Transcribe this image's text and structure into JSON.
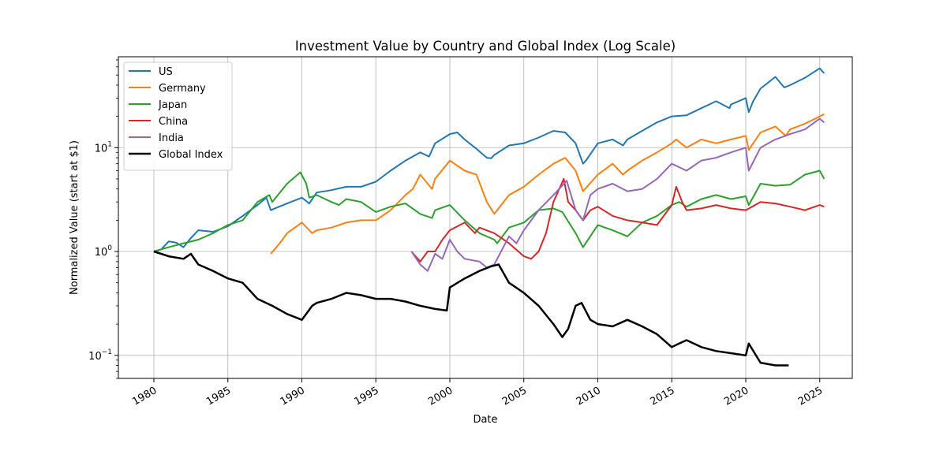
{
  "chart_data": {
    "type": "line",
    "title": "Investment Value by Country and Global Index (Log Scale)",
    "xlabel": "Date",
    "ylabel": "Normalized Value (start at $1)",
    "yscale": "log",
    "ylim": [
      0.06,
      75
    ],
    "xlim": [
      1977.6,
      2027.2
    ],
    "grid": true,
    "legend_position": "top-left",
    "x_ticks": [
      1980,
      1985,
      1990,
      1995,
      2000,
      2005,
      2010,
      2015,
      2020,
      2025
    ],
    "x_tick_labels": [
      "1980",
      "1985",
      "1990",
      "1995",
      "2000",
      "2005",
      "2010",
      "2015",
      "2020",
      "2025"
    ],
    "y_ticks": [
      {
        "value": 0.1,
        "base": "10",
        "exp": "−1"
      },
      {
        "value": 1,
        "base": "10",
        "exp": "0"
      },
      {
        "value": 10,
        "base": "10",
        "exp": "1"
      }
    ],
    "series": [
      {
        "name": "US",
        "color": "#1f77b4",
        "width": 2,
        "x": [
          1980.0,
          1980.5,
          1981.0,
          1981.5,
          1982.0,
          1982.5,
          1983.0,
          1984.0,
          1985.0,
          1986.0,
          1987.0,
          1987.6,
          1987.9,
          1989.0,
          1990.0,
          1990.5,
          1991.0,
          1992.0,
          1993.0,
          1994.0,
          1995.0,
          1996.0,
          1997.0,
          1998.0,
          1998.6,
          1999.0,
          2000.0,
          2000.5,
          2001.0,
          2001.7,
          2002.5,
          2002.8,
          2003.0,
          2004.0,
          2005.0,
          2006.0,
          2007.0,
          2007.8,
          2008.5,
          2009.0,
          2009.2,
          2010.0,
          2011.0,
          2011.7,
          2012.0,
          2013.0,
          2014.0,
          2015.0,
          2016.0,
          2017.0,
          2018.0,
          2018.9,
          2019.0,
          2020.0,
          2020.2,
          2020.5,
          2021.0,
          2022.0,
          2022.6,
          2023.0,
          2024.0,
          2025.0,
          2025.3
        ],
        "y": [
          1.0,
          1.05,
          1.25,
          1.22,
          1.1,
          1.35,
          1.6,
          1.55,
          1.75,
          2.2,
          2.8,
          3.3,
          2.5,
          2.9,
          3.3,
          2.9,
          3.7,
          3.9,
          4.2,
          4.2,
          4.7,
          6.0,
          7.5,
          9.0,
          8.2,
          11.0,
          13.5,
          14.0,
          12.0,
          10.0,
          8.0,
          7.9,
          8.5,
          10.5,
          11.0,
          12.5,
          14.5,
          14.0,
          11.0,
          7.0,
          7.5,
          11.0,
          12.0,
          10.5,
          12.0,
          14.5,
          17.5,
          20.0,
          20.5,
          24.0,
          28.0,
          24.0,
          26.0,
          30.0,
          22.0,
          28.0,
          37.0,
          48.0,
          38.0,
          40.0,
          47.0,
          58.0,
          52.0
        ]
      },
      {
        "name": "Germany",
        "color": "#ff7f0e",
        "width": 2,
        "x": [
          1987.9,
          1988.5,
          1989.0,
          1990.0,
          1990.7,
          1991.0,
          1992.0,
          1993.0,
          1994.0,
          1995.0,
          1996.0,
          1997.0,
          1997.5,
          1998.0,
          1998.8,
          1999.0,
          2000.0,
          2001.0,
          2001.8,
          2002.5,
          2003.0,
          2003.2,
          2004.0,
          2005.0,
          2006.0,
          2007.0,
          2007.8,
          2008.5,
          2009.0,
          2010.0,
          2011.0,
          2011.7,
          2012.0,
          2013.0,
          2014.0,
          2015.0,
          2015.3,
          2016.0,
          2017.0,
          2018.0,
          2019.0,
          2020.0,
          2020.2,
          2021.0,
          2022.0,
          2022.7,
          2023.0,
          2024.0,
          2025.0,
          2025.3
        ],
        "y": [
          0.95,
          1.2,
          1.5,
          1.9,
          1.5,
          1.6,
          1.7,
          1.9,
          2.0,
          2.0,
          2.5,
          3.5,
          4.0,
          5.5,
          4.0,
          5.0,
          7.5,
          6.0,
          5.5,
          3.0,
          2.3,
          2.5,
          3.5,
          4.2,
          5.5,
          7.0,
          8.0,
          6.0,
          3.8,
          5.5,
          7.0,
          5.5,
          6.0,
          7.5,
          9.0,
          11.0,
          12.0,
          10.0,
          12.0,
          11.0,
          12.0,
          13.0,
          9.5,
          14.0,
          16.0,
          13.0,
          15.0,
          17.0,
          20.0,
          21.0
        ]
      },
      {
        "name": "Japan",
        "color": "#2ca02c",
        "width": 2,
        "x": [
          1980.0,
          1981.0,
          1982.0,
          1983.0,
          1984.0,
          1985.0,
          1986.0,
          1987.0,
          1987.8,
          1988.0,
          1989.0,
          1989.9,
          1990.3,
          1990.5,
          1991.0,
          1992.0,
          1992.5,
          1993.0,
          1994.0,
          1995.0,
          1996.0,
          1997.0,
          1998.0,
          1998.8,
          1999.0,
          2000.0,
          2001.0,
          2002.0,
          2003.0,
          2003.2,
          2004.0,
          2005.0,
          2006.0,
          2007.0,
          2007.6,
          2008.5,
          2009.0,
          2010.0,
          2011.0,
          2012.0,
          2013.0,
          2014.0,
          2015.0,
          2015.5,
          2016.0,
          2017.0,
          2018.0,
          2019.0,
          2020.0,
          2020.2,
          2021.0,
          2022.0,
          2023.0,
          2024.0,
          2025.0,
          2025.3
        ],
        "y": [
          1.0,
          1.1,
          1.2,
          1.3,
          1.5,
          1.8,
          2.0,
          3.0,
          3.5,
          3.0,
          4.5,
          5.8,
          4.5,
          3.3,
          3.5,
          3.0,
          2.8,
          3.2,
          3.0,
          2.4,
          2.7,
          2.9,
          2.3,
          2.1,
          2.5,
          2.8,
          2.0,
          1.5,
          1.3,
          1.2,
          1.7,
          1.9,
          2.5,
          2.6,
          2.4,
          1.5,
          1.1,
          1.8,
          1.6,
          1.4,
          1.9,
          2.2,
          2.8,
          3.0,
          2.7,
          3.2,
          3.5,
          3.2,
          3.4,
          2.8,
          4.5,
          4.3,
          4.4,
          5.5,
          6.0,
          5.0
        ]
      },
      {
        "name": "China",
        "color": "#d62728",
        "width": 2,
        "x": [
          1997.4,
          1998.0,
          1998.5,
          1999.0,
          1999.5,
          2000.0,
          2001.0,
          2001.7,
          2002.0,
          2003.0,
          2004.0,
          2005.0,
          2005.5,
          2006.0,
          2006.5,
          2007.0,
          2007.7,
          2008.0,
          2008.5,
          2009.0,
          2009.5,
          2010.0,
          2011.0,
          2012.0,
          2013.0,
          2014.0,
          2015.0,
          2015.3,
          2015.7,
          2016.0,
          2017.0,
          2018.0,
          2019.0,
          2020.0,
          2021.0,
          2022.0,
          2023.0,
          2024.0,
          2025.0,
          2025.3
        ],
        "y": [
          1.0,
          0.8,
          1.0,
          1.0,
          1.3,
          1.6,
          1.9,
          1.5,
          1.7,
          1.5,
          1.2,
          0.9,
          0.85,
          1.0,
          1.5,
          3.0,
          5.0,
          3.0,
          2.5,
          2.0,
          2.5,
          2.7,
          2.2,
          2.0,
          1.9,
          1.8,
          2.8,
          4.2,
          3.0,
          2.5,
          2.6,
          2.8,
          2.6,
          2.5,
          3.0,
          2.9,
          2.7,
          2.5,
          2.8,
          2.7
        ]
      },
      {
        "name": "India",
        "color": "#9467bd",
        "width": 2,
        "x": [
          1997.4,
          1998.0,
          1998.5,
          1999.0,
          1999.5,
          2000.0,
          2000.5,
          2001.0,
          2002.0,
          2002.5,
          2003.0,
          2004.0,
          2004.5,
          2005.0,
          2006.0,
          2007.0,
          2007.9,
          2008.5,
          2009.0,
          2009.5,
          2010.0,
          2011.0,
          2012.0,
          2013.0,
          2014.0,
          2015.0,
          2016.0,
          2017.0,
          2018.0,
          2019.0,
          2020.0,
          2020.2,
          2021.0,
          2022.0,
          2023.0,
          2024.0,
          2025.0,
          2025.3
        ],
        "y": [
          1.0,
          0.75,
          0.65,
          0.95,
          0.85,
          1.3,
          1.0,
          0.85,
          0.8,
          0.7,
          0.75,
          1.4,
          1.2,
          1.6,
          2.5,
          3.5,
          4.8,
          2.5,
          2.0,
          3.5,
          4.0,
          4.5,
          3.8,
          4.0,
          5.0,
          7.0,
          6.0,
          7.5,
          8.0,
          9.0,
          10.0,
          6.0,
          10.0,
          12.0,
          13.5,
          15.0,
          19.0,
          17.5
        ]
      },
      {
        "name": "Global Index",
        "color": "#000000",
        "width": 2.5,
        "x": [
          1980.0,
          1981.0,
          1982.0,
          1982.5,
          1983.0,
          1984.0,
          1985.0,
          1986.0,
          1987.0,
          1988.0,
          1989.0,
          1990.0,
          1990.7,
          1991.0,
          1992.0,
          1993.0,
          1994.0,
          1995.0,
          1996.0,
          1997.0,
          1998.0,
          1999.0,
          1999.8,
          2000.0,
          2001.0,
          2002.0,
          2002.8,
          2003.3,
          2004.0,
          2005.0,
          2006.0,
          2007.0,
          2007.6,
          2008.0,
          2008.5,
          2008.9,
          2009.5,
          2010.0,
          2011.0,
          2012.0,
          2013.0,
          2014.0,
          2015.0,
          2015.5,
          2016.0,
          2017.0,
          2018.0,
          2019.0,
          2020.0,
          2020.2,
          2021.0,
          2022.0,
          2022.9
        ],
        "y": [
          1.0,
          0.9,
          0.85,
          0.95,
          0.75,
          0.65,
          0.55,
          0.5,
          0.35,
          0.3,
          0.25,
          0.22,
          0.3,
          0.32,
          0.35,
          0.4,
          0.38,
          0.35,
          0.35,
          0.33,
          0.3,
          0.28,
          0.27,
          0.45,
          0.55,
          0.65,
          0.72,
          0.75,
          0.5,
          0.4,
          0.3,
          0.2,
          0.15,
          0.18,
          0.3,
          0.32,
          0.22,
          0.2,
          0.19,
          0.22,
          0.19,
          0.16,
          0.12,
          0.13,
          0.14,
          0.12,
          0.11,
          0.105,
          0.1,
          0.13,
          0.085,
          0.08,
          0.08
        ]
      }
    ]
  }
}
